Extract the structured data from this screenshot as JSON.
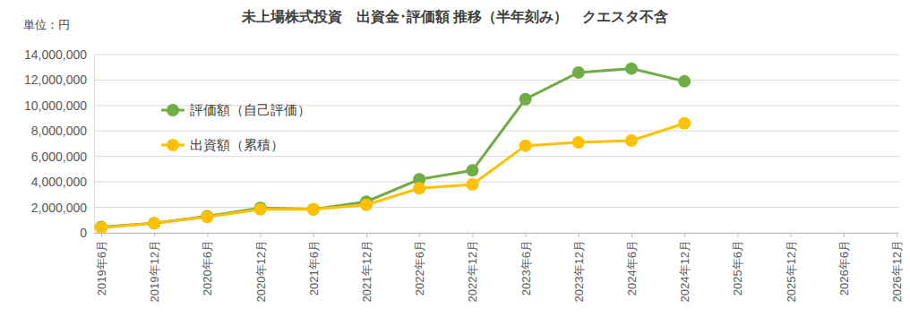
{
  "chart_data": {
    "type": "line",
    "title": "未上場株式投資　出資金･評価額 推移（半年刻み）　クエスタ不含",
    "unit_label": "単位：円",
    "categories": [
      "2019年6月",
      "2019年12月",
      "2020年6月",
      "2020年12月",
      "2021年6月",
      "2021年12月",
      "2022年6月",
      "2022年12月",
      "2023年6月",
      "2023年12月",
      "2024年6月",
      "2024年12月",
      "2025年6月",
      "2025年12月",
      "2026年6月",
      "2026年12月"
    ],
    "series": [
      {
        "name": "評価額（自己評価）",
        "color": "#70ad47",
        "marker": "circle",
        "line_style": "solid",
        "values": [
          450000,
          750000,
          1300000,
          1950000,
          1850000,
          2450000,
          4200000,
          4900000,
          10500000,
          12600000,
          12900000,
          11900000,
          null,
          null,
          null,
          null
        ]
      },
      {
        "name": "出資額（累積）",
        "color": "#ffc000",
        "marker": "circle",
        "line_style": "solid",
        "values": [
          400000,
          750000,
          1250000,
          1850000,
          1850000,
          2200000,
          3500000,
          3800000,
          6850000,
          7100000,
          7250000,
          8600000,
          null,
          null,
          null,
          null
        ]
      }
    ],
    "ylim": [
      0,
      14000000
    ],
    "yticks": [
      0,
      {
        "value": 2000000,
        "label": "2,000,000"
      },
      {
        "value": 4000000,
        "label": "4,000,000"
      },
      {
        "value": 6000000,
        "label": "6,000,000"
      },
      {
        "value": 8000000,
        "label": "8,000,000"
      },
      {
        "value": 10000000,
        "label": "10,000,000"
      },
      {
        "value": 12000000,
        "label": "12,000,000"
      },
      {
        "value": 14000000,
        "label": "14,000,000"
      }
    ],
    "grid": true,
    "legend": "upper left"
  }
}
